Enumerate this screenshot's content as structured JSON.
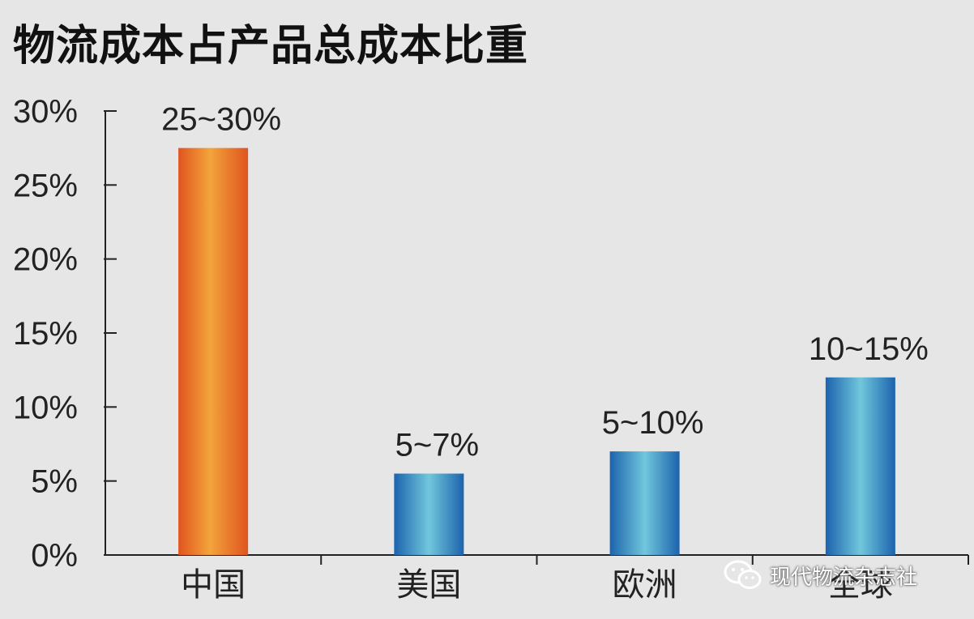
{
  "chart_data": {
    "type": "bar",
    "title": "物流成本占产品总成本比重",
    "categories": [
      "中国",
      "美国",
      "欧洲",
      "全球"
    ],
    "values": [
      27.5,
      5.5,
      7,
      12
    ],
    "data_labels": [
      "25~30%",
      "5~7%",
      "5~10%",
      "10~15%"
    ],
    "bar_colors": [
      "#e8732e",
      "#2a7fbf",
      "#2a7fbf",
      "#2a7fbf"
    ],
    "ylim": [
      0,
      30
    ],
    "yticks": [
      "0%",
      "5%",
      "10%",
      "15%",
      "20%",
      "25%",
      "30%"
    ],
    "ytick_values": [
      0,
      5,
      10,
      15,
      20,
      25,
      30
    ],
    "xlabel": "",
    "ylabel": "",
    "grid": false,
    "legend": "none"
  },
  "watermark": {
    "text": "现代物流杂志社",
    "icon": "wechat-icon"
  }
}
